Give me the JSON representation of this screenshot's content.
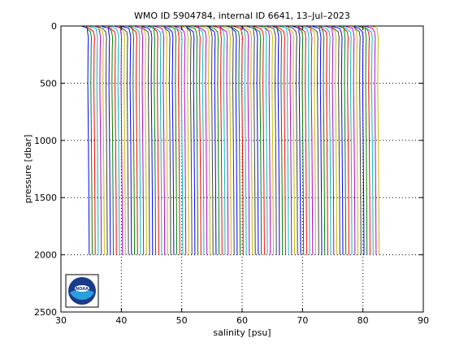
{
  "chart_data": {
    "type": "line",
    "title": "WMO ID 5904784, internal ID 6641, 13–Jul–2023",
    "xlabel": "salinity [psu]",
    "ylabel": "pressure [dbar]",
    "xlim": [
      30,
      90
    ],
    "ylim": [
      2500,
      0
    ],
    "y_reversed": true,
    "x_ticks": [
      30,
      40,
      50,
      60,
      70,
      80,
      90
    ],
    "x_tick_labels": [
      "30",
      "40",
      "50",
      "60",
      "70",
      "80",
      "90"
    ],
    "y_ticks": [
      0,
      500,
      1000,
      1500,
      2000,
      2500
    ],
    "y_tick_labels": [
      "0",
      "500",
      "1000",
      "1500",
      "2000",
      "2500"
    ],
    "grid": "dotted",
    "profile_offset_step_psu": 0.5,
    "profile_series": {
      "count": 97,
      "first_profile_deep_salinity_psu": 34.9,
      "pressure_dbar": [
        0,
        10,
        20,
        50,
        100,
        200,
        500,
        1000,
        1500,
        2000
      ],
      "salinity_psu": [
        33.4,
        33.6,
        34.0,
        34.4,
        34.55,
        34.5,
        34.45,
        34.55,
        34.63,
        34.68
      ],
      "colors": [
        "#0000ff",
        "#008000",
        "#ff0000",
        "#00bfbf",
        "#bf00bf",
        "#bfbf00",
        "#404040"
      ]
    },
    "logo": {
      "text": "NOAA",
      "position": "bottom-left"
    }
  }
}
